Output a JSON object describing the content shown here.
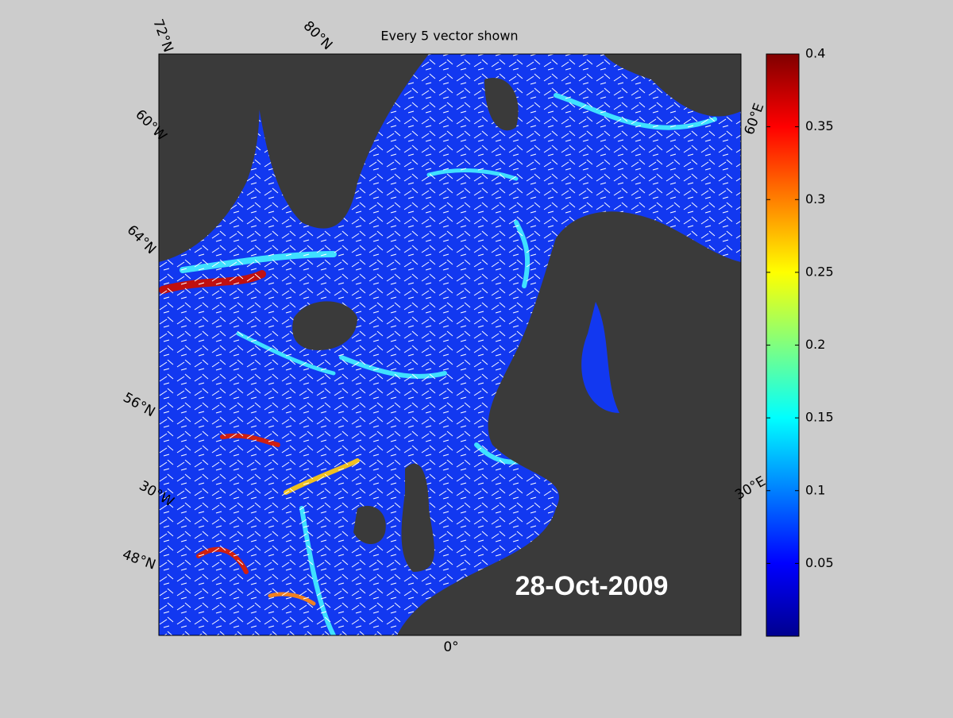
{
  "title": "Every 5 vector shown",
  "date_label": "28-Oct-2009",
  "graticule_labels": [
    "72°N",
    "80°N",
    "60°W",
    "64°N",
    "56°N",
    "30°W",
    "48°N",
    "0°",
    "30°E",
    "60°E"
  ],
  "colorbar": {
    "clim": [
      0,
      0.4
    ],
    "ticks": [
      0.05,
      0.1,
      0.15,
      0.2,
      0.25,
      0.3,
      0.35,
      0.4
    ],
    "colormap": "jet"
  }
}
